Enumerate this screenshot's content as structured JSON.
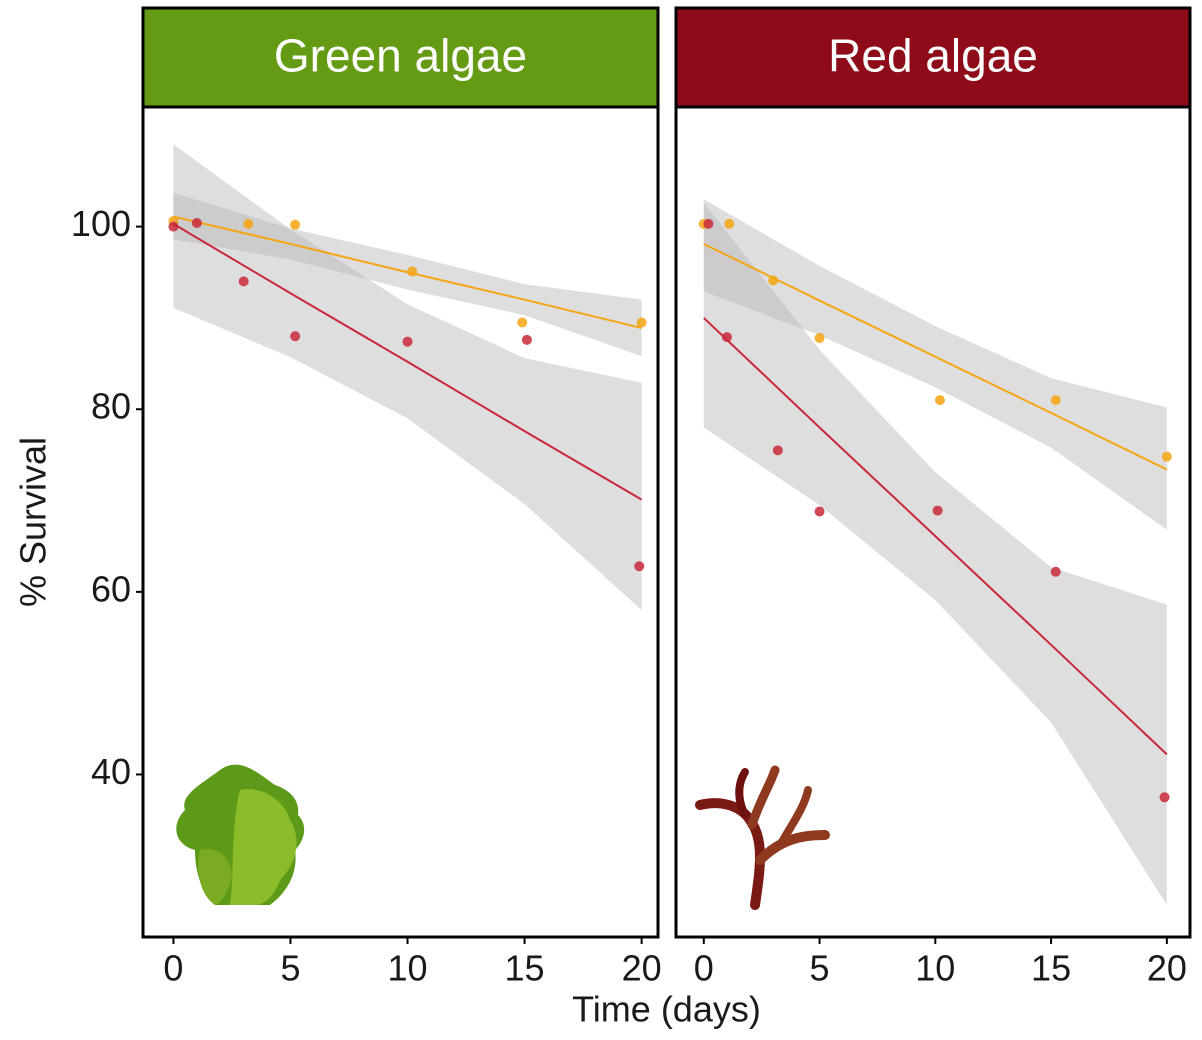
{
  "chart_data": [
    {
      "type": "scatter",
      "title": "Green algae",
      "title_color": "#659a15",
      "ylabel": "% Survival",
      "xlabel": "Time (days)",
      "xlim": [
        -1.3,
        20.7
      ],
      "ylim": [
        22.2,
        113.1
      ],
      "xticks": [
        0,
        5,
        10,
        15,
        20
      ],
      "yticks": [
        40,
        60,
        80,
        100
      ],
      "series": [
        {
          "color": "#f5a511",
          "x": [
            0,
            3.2,
            5.2,
            10.2,
            14.9,
            20
          ],
          "values": [
            100.6,
            100.3,
            100.2,
            95.1,
            89.5,
            89.5
          ],
          "fit_x": [
            0,
            5,
            10,
            15,
            20
          ],
          "fit": [
            101.1,
            98.1,
            95,
            92,
            88.9
          ],
          "fit_low": [
            98.6,
            96.4,
            93.1,
            90.3,
            85.8
          ],
          "fit_high": [
            103.7,
            99.8,
            96.9,
            93.7,
            92
          ]
        },
        {
          "color": "#c9283a",
          "x": [
            0,
            1,
            3,
            5.2,
            10,
            15.1,
            19.9
          ],
          "values": [
            100,
            100.4,
            94,
            88,
            87.4,
            87.6,
            62.8
          ],
          "fit_x": [
            0,
            5,
            10,
            15,
            20
          ],
          "fit": [
            100.3,
            92.7,
            85.2,
            77.6,
            70.1
          ],
          "fit_low": [
            91.1,
            85.7,
            79,
            69.6,
            58
          ],
          "fit_high": [
            109,
            99.7,
            91.5,
            85.6,
            82.9
          ]
        }
      ]
    },
    {
      "type": "scatter",
      "title": "Red algae",
      "title_color": "#8e0b19",
      "xlim": [
        -1.2,
        21.0
      ],
      "ylim": [
        22.2,
        113.1
      ],
      "xticks": [
        0,
        5,
        10,
        15,
        20
      ],
      "series": [
        {
          "color": "#f5a511",
          "x": [
            0,
            1.1,
            3,
            5,
            10.2,
            15.2,
            20
          ],
          "values": [
            100.3,
            100.3,
            94.1,
            87.8,
            81,
            81,
            74.8
          ],
          "fit_x": [
            0,
            5,
            10,
            15,
            20
          ],
          "fit": [
            98.1,
            91.9,
            85.75,
            79.6,
            73.4
          ],
          "fit_low": [
            92.9,
            88.1,
            82.4,
            75.8,
            66.8
          ],
          "fit_high": [
            103,
            95.7,
            89.1,
            83.4,
            80.2
          ]
        },
        {
          "color": "#c9283a",
          "x": [
            0.2,
            1,
            3.2,
            5,
            10.1,
            15.2,
            19.9
          ],
          "values": [
            100.3,
            87.9,
            75.5,
            68.8,
            68.9,
            62.2,
            37.5
          ],
          "fit_x": [
            0,
            5,
            10,
            15,
            20
          ],
          "fit": [
            90,
            78,
            66.1,
            54.2,
            42.2
          ],
          "fit_low": [
            78,
            69.5,
            59.1,
            45.7,
            25.7
          ],
          "fit_high": [
            102.6,
            86.5,
            73.1,
            62.7,
            58.6
          ]
        }
      ]
    }
  ]
}
